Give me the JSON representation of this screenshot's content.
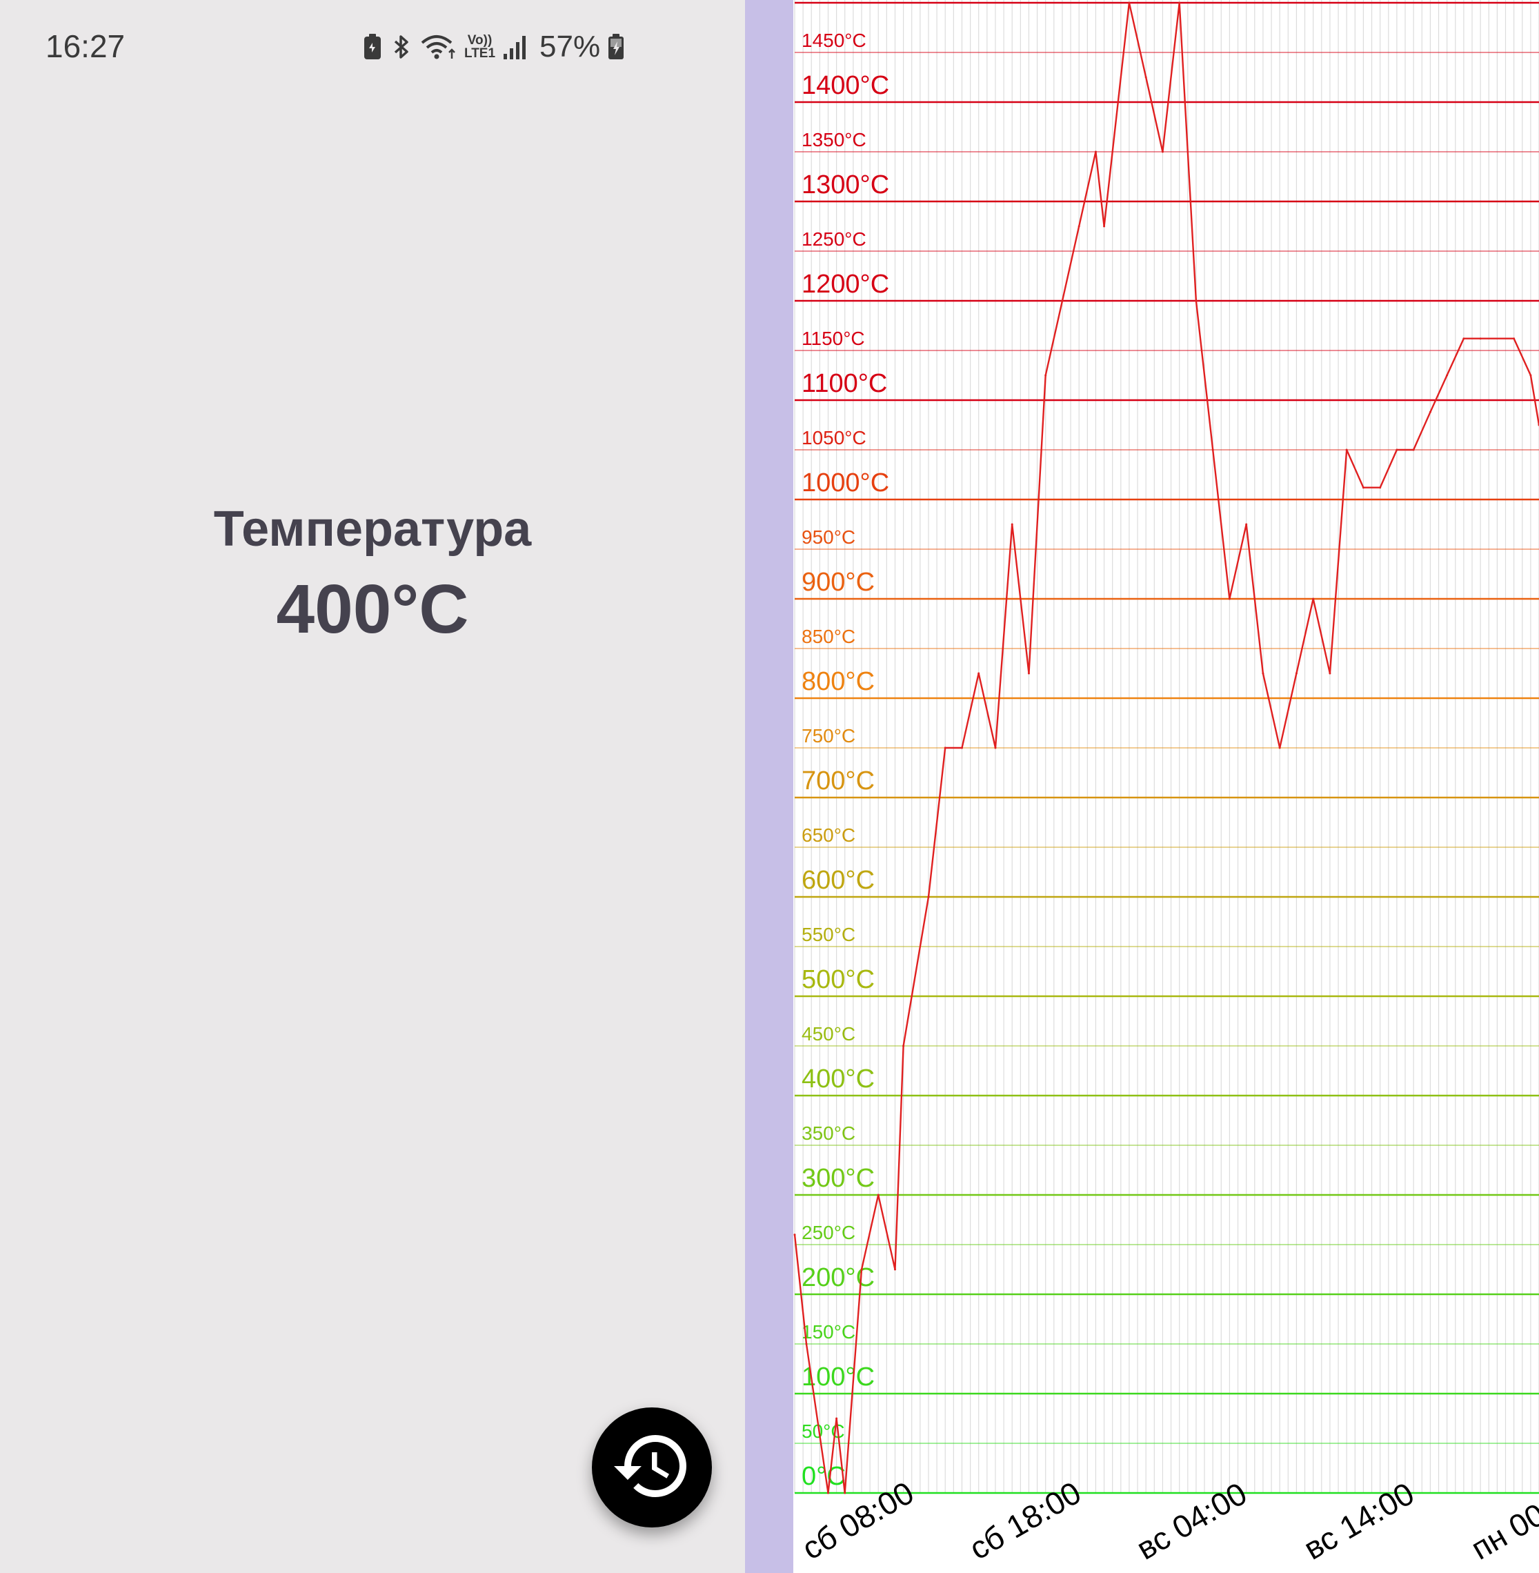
{
  "status_bar": {
    "time": "16:27",
    "icons": [
      "battery-saver-icon",
      "bluetooth-icon",
      "wifi-icon",
      "volte-lte-icon",
      "signal-icon",
      "battery-charging-icon"
    ],
    "volte_top": "Vo))",
    "volte_bottom": "LTE1",
    "battery_percent": "57%"
  },
  "sensor": {
    "title": "Температура",
    "value": "400°C"
  },
  "fab": {
    "icon": "history-icon"
  },
  "colors": {
    "background": "#eae8e9",
    "divider": "#c7bfe7",
    "chart_line": "#e02020",
    "text": "#45424e"
  },
  "chart_data": {
    "type": "line",
    "unit": "°C",
    "ylim": [
      0,
      1500
    ],
    "grid": true,
    "y_major_ticks": [
      "0°C",
      "100°C",
      "200°C",
      "300°C",
      "400°C",
      "500°C",
      "600°C",
      "700°C",
      "800°C",
      "900°C",
      "1000°C",
      "1100°C",
      "1200°C",
      "1300°C",
      "1400°C"
    ],
    "y_minor_ticks": [
      "50°C",
      "150°C",
      "250°C",
      "350°C",
      "450°C",
      "550°C",
      "650°C",
      "750°C",
      "850°C",
      "950°C",
      "1050°C",
      "1150°C",
      "1250°C",
      "1350°C",
      "1450°C"
    ],
    "x_tick_labels": [
      "сб 08:00",
      "сб 18:00",
      "вс 04:00",
      "вс 14:00",
      "пн 00:00"
    ],
    "x_tick_hours": [
      10,
      20,
      30,
      40,
      50
    ],
    "xlim_hours": [
      7,
      51.5
    ],
    "series": [
      {
        "hours": [
          7,
          7.7,
          9,
          9.5,
          10,
          11,
          12,
          13,
          13.5,
          15,
          16,
          17,
          18,
          19,
          20,
          21,
          22,
          23,
          24,
          25,
          25.5,
          27,
          28,
          29,
          30,
          31,
          32,
          33,
          34,
          35,
          36,
          37,
          38,
          39,
          40,
          41,
          42,
          43,
          44,
          45,
          46,
          47,
          48,
          50,
          51,
          51.5
        ],
        "values": [
          260,
          150,
          0,
          75,
          0,
          225,
          300,
          225,
          450,
          600,
          750,
          750,
          825,
          750,
          975,
          825,
          1125,
          1200,
          1275,
          1350,
          1275,
          1500,
          1425,
          1350,
          1500,
          1200,
          1050,
          900,
          975,
          825,
          750,
          825,
          900,
          825,
          1050,
          1012,
          1012,
          1050,
          1050,
          1088,
          1125,
          1162,
          1162,
          1162,
          1125,
          1075
        ]
      }
    ]
  }
}
